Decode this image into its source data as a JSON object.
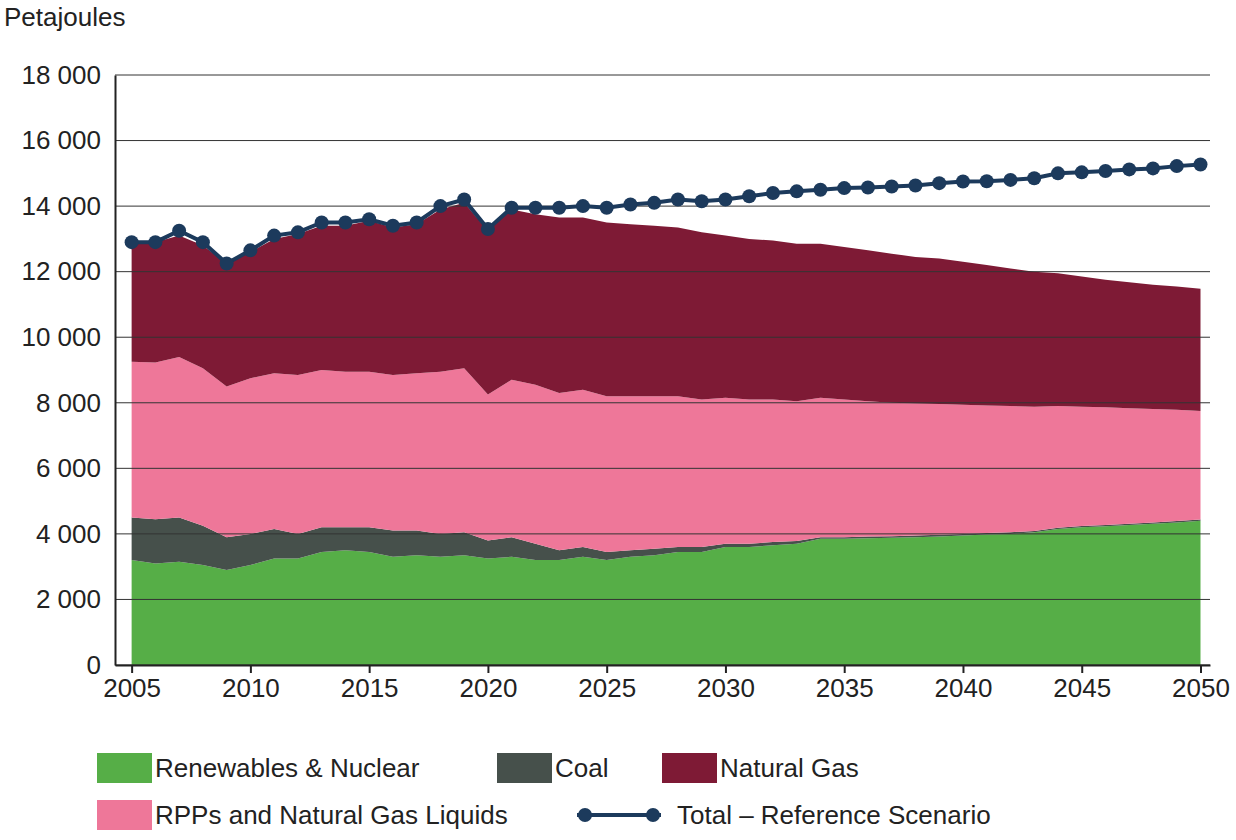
{
  "chart_data": {
    "type": "area",
    "stacked": true,
    "grid": true,
    "y_label": "Petajoules",
    "x": [
      2005,
      2006,
      2007,
      2008,
      2009,
      2010,
      2011,
      2012,
      2013,
      2014,
      2015,
      2016,
      2017,
      2018,
      2019,
      2020,
      2021,
      2022,
      2023,
      2024,
      2025,
      2026,
      2027,
      2028,
      2029,
      2030,
      2031,
      2032,
      2033,
      2034,
      2035,
      2036,
      2037,
      2038,
      2039,
      2040,
      2041,
      2042,
      2043,
      2044,
      2045,
      2046,
      2047,
      2048,
      2049,
      2050
    ],
    "xlim": [
      2004.3,
      2050.4
    ],
    "xticks": [
      2005,
      2010,
      2015,
      2020,
      2025,
      2030,
      2035,
      2040,
      2045,
      2050
    ],
    "ylim": [
      0,
      18000
    ],
    "yticks": [
      0,
      {
        "value": 2000,
        "label": "2 000"
      },
      {
        "value": 4000,
        "label": "4 000"
      },
      {
        "value": 6000,
        "label": "6 000"
      },
      {
        "value": 8000,
        "label": "8 000"
      },
      {
        "value": 10000,
        "label": "10 000"
      },
      {
        "value": 12000,
        "label": "12 000"
      },
      {
        "value": 14000,
        "label": "14 000"
      },
      {
        "value": 16000,
        "label": "16 000"
      },
      {
        "value": 18000,
        "label": "18 000"
      }
    ],
    "series": [
      {
        "name": "Renewables & Nuclear",
        "type": "area",
        "color": "#56ae47",
        "values": [
          3200,
          3100,
          3150,
          3050,
          2900,
          3050,
          3250,
          3250,
          3450,
          3500,
          3450,
          3300,
          3350,
          3300,
          3350,
          3250,
          3300,
          3200,
          3200,
          3300,
          3200,
          3300,
          3350,
          3450,
          3450,
          3600,
          3600,
          3650,
          3700,
          3850,
          3850,
          3870,
          3880,
          3900,
          3920,
          3950,
          3980,
          4000,
          4050,
          4150,
          4200,
          4230,
          4270,
          4310,
          4350,
          4400
        ]
      },
      {
        "name": "Coal",
        "type": "area",
        "color": "#46504b",
        "values": [
          1300,
          1350,
          1350,
          1200,
          1000,
          950,
          900,
          750,
          750,
          700,
          750,
          800,
          750,
          700,
          700,
          550,
          600,
          500,
          300,
          300,
          250,
          200,
          200,
          150,
          150,
          100,
          100,
          100,
          80,
          50,
          50,
          50,
          50,
          50,
          50,
          50,
          50,
          50,
          40,
          40,
          40,
          40,
          40,
          40,
          40,
          40
        ]
      },
      {
        "name": "RPPs and Natural Gas Liquids",
        "type": "area",
        "color": "#ee7799",
        "values": [
          4750,
          4780,
          4900,
          4800,
          4600,
          4750,
          4750,
          4850,
          4800,
          4750,
          4750,
          4750,
          4800,
          4950,
          5000,
          4450,
          4800,
          4850,
          4800,
          4800,
          4750,
          4700,
          4650,
          4600,
          4500,
          4450,
          4400,
          4350,
          4270,
          4250,
          4200,
          4130,
          4070,
          4030,
          3990,
          3940,
          3890,
          3850,
          3790,
          3710,
          3640,
          3590,
          3520,
          3460,
          3400,
          3310
        ]
      },
      {
        "name": "Natural Gas",
        "type": "area",
        "color": "#7e1a35",
        "values": [
          3600,
          3670,
          3700,
          3750,
          3750,
          3850,
          4100,
          4300,
          4400,
          4450,
          4600,
          4500,
          4550,
          4950,
          5050,
          5000,
          5200,
          5200,
          5350,
          5250,
          5300,
          5250,
          5200,
          5150,
          5100,
          4950,
          4900,
          4850,
          4800,
          4700,
          4650,
          4600,
          4550,
          4470,
          4440,
          4360,
          4280,
          4200,
          4120,
          4050,
          3970,
          3890,
          3850,
          3790,
          3760,
          3730
        ]
      },
      {
        "name": "Total – Reference Scenario",
        "type": "line",
        "marker": "circle",
        "color": "#1c3a5c",
        "values": [
          12900,
          12900,
          13250,
          12900,
          12250,
          12650,
          13100,
          13200,
          13500,
          13500,
          13600,
          13400,
          13500,
          14000,
          14200,
          13300,
          13950,
          13950,
          13950,
          14000,
          13950,
          14050,
          14100,
          14200,
          14150,
          14200,
          14300,
          14400,
          14450,
          14500,
          14550,
          14570,
          14600,
          14630,
          14700,
          14750,
          14760,
          14800,
          14850,
          15000,
          15030,
          15070,
          15120,
          15150,
          15220,
          15270
        ]
      }
    ]
  }
}
